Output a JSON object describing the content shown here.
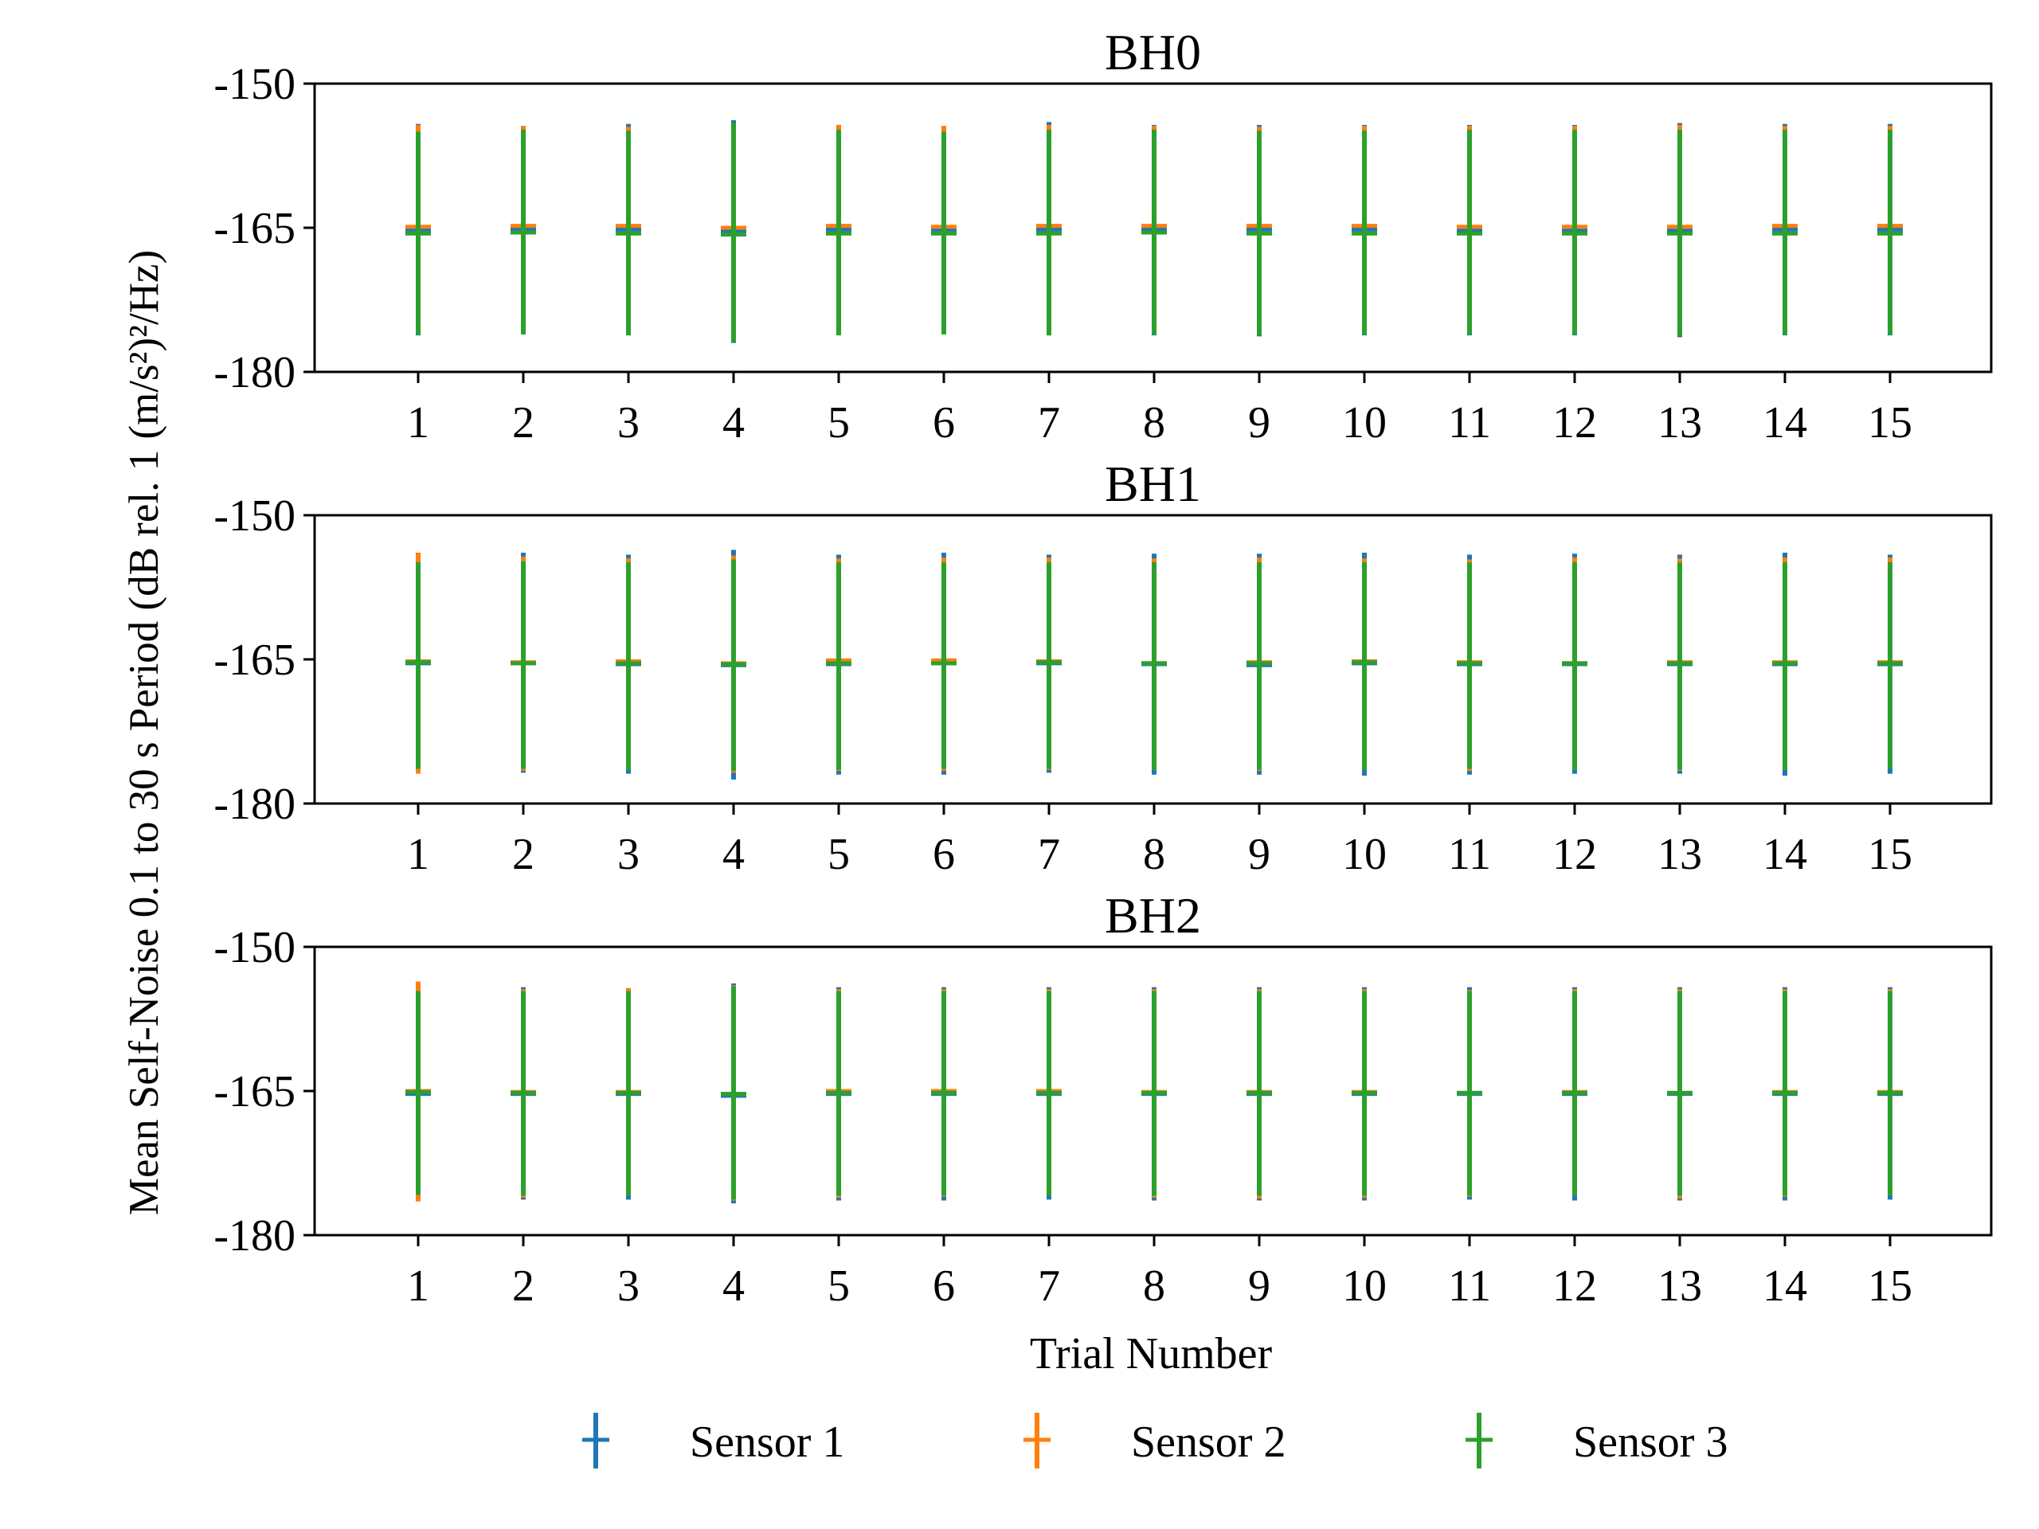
{
  "chart_data": {
    "type": "errorbar",
    "ylabel": "Mean Self-Noise 0.1 to 30 s Period (dB rel. 1 (m/s²)²/Hz)",
    "xlabel": "Trial Number",
    "categories": [
      1,
      2,
      3,
      4,
      5,
      6,
      7,
      8,
      9,
      10,
      11,
      12,
      13,
      14,
      15
    ],
    "x_tick_labels": [
      "1",
      "2",
      "3",
      "4",
      "5",
      "6",
      "7",
      "8",
      "9",
      "10",
      "11",
      "12",
      "13",
      "14",
      "15"
    ],
    "y_ticks": [
      -150,
      -165,
      -180
    ],
    "y_tick_labels": [
      "-150",
      "-165",
      "-180"
    ],
    "ylim": [
      -180,
      -150
    ],
    "legend": {
      "placement": "bottom-center",
      "entries": [
        {
          "name": "Sensor 1",
          "color": "#1f77b4"
        },
        {
          "name": "Sensor 2",
          "color": "#ff7f0e"
        },
        {
          "name": "Sensor 3",
          "color": "#2ca02c"
        }
      ]
    },
    "panels": [
      {
        "title": "BH0",
        "series": [
          {
            "name": "Sensor 1",
            "color": "#1f77b4",
            "mean": [
              -165.2,
              -165.2,
              -165.2,
              -165.4,
              -165.2,
              -165.2,
              -165.2,
              -165.2,
              -165.2,
              -165.2,
              -165.3,
              -165.3,
              -165.3,
              -165.2,
              -165.2
            ],
            "upper": [
              -154.2,
              -154.4,
              -154.2,
              -153.8,
              -154.3,
              -154.4,
              -154.0,
              -154.3,
              -154.3,
              -154.3,
              -154.3,
              -154.3,
              -154.1,
              -154.2,
              -154.2
            ],
            "lower": [
              -176.2,
              -176.1,
              -176.2,
              -177.0,
              -176.1,
              -176.1,
              -176.2,
              -176.2,
              -176.3,
              -176.2,
              -176.2,
              -176.2,
              -176.4,
              -176.2,
              -176.2
            ]
          },
          {
            "name": "Sensor 2",
            "color": "#ff7f0e",
            "mean": [
              -164.9,
              -164.8,
              -164.8,
              -165.0,
              -164.8,
              -164.9,
              -164.8,
              -164.8,
              -164.8,
              -164.8,
              -164.9,
              -164.9,
              -164.9,
              -164.8,
              -164.8
            ],
            "upper": [
              -154.3,
              -154.4,
              -154.5,
              -154.1,
              -154.3,
              -154.4,
              -154.3,
              -154.4,
              -154.5,
              -154.4,
              -154.4,
              -154.4,
              -154.3,
              -154.4,
              -154.4
            ],
            "lower": [
              -175.8,
              -175.6,
              -175.7,
              -176.1,
              -175.7,
              -175.7,
              -175.6,
              -175.7,
              -175.8,
              -175.6,
              -175.7,
              -175.7,
              -175.8,
              -175.6,
              -175.7
            ]
          },
          {
            "name": "Sensor 3",
            "color": "#2ca02c",
            "mean": [
              -165.6,
              -165.5,
              -165.6,
              -165.7,
              -165.6,
              -165.6,
              -165.6,
              -165.5,
              -165.6,
              -165.6,
              -165.6,
              -165.6,
              -165.6,
              -165.6,
              -165.6
            ],
            "upper": [
              -155.0,
              -154.8,
              -154.9,
              -154.1,
              -154.8,
              -155.0,
              -154.8,
              -154.8,
              -154.9,
              -154.9,
              -154.8,
              -154.8,
              -154.8,
              -154.8,
              -154.8
            ],
            "lower": [
              -176.1,
              -176.1,
              -176.2,
              -176.9,
              -176.2,
              -176.1,
              -176.2,
              -176.1,
              -176.2,
              -176.1,
              -176.1,
              -176.1,
              -176.2,
              -176.1,
              -176.1
            ]
          }
        ]
      },
      {
        "title": "BH1",
        "series": [
          {
            "name": "Sensor 1",
            "color": "#1f77b4",
            "mean": [
              -165.4,
              -165.4,
              -165.5,
              -165.6,
              -165.5,
              -165.4,
              -165.4,
              -165.5,
              -165.6,
              -165.4,
              -165.5,
              -165.5,
              -165.5,
              -165.5,
              -165.5
            ],
            "upper": [
              -154.0,
              -153.9,
              -154.1,
              -153.6,
              -154.1,
              -153.9,
              -154.1,
              -154.0,
              -154.0,
              -153.9,
              -154.1,
              -154.0,
              -154.1,
              -153.9,
              -154.1
            ],
            "lower": [
              -176.8,
              -176.8,
              -176.9,
              -177.5,
              -177.0,
              -177.0,
              -176.8,
              -177.0,
              -177.0,
              -177.1,
              -177.0,
              -176.9,
              -176.9,
              -177.1,
              -176.9
            ]
          },
          {
            "name": "Sensor 2",
            "color": "#ff7f0e",
            "mean": [
              -165.2,
              -165.3,
              -165.2,
              -165.4,
              -165.1,
              -165.1,
              -165.2,
              -165.4,
              -165.3,
              -165.2,
              -165.3,
              -165.4,
              -165.3,
              -165.3,
              -165.3
            ],
            "upper": [
              -153.9,
              -154.3,
              -154.5,
              -154.2,
              -154.5,
              -154.4,
              -154.4,
              -154.5,
              -154.4,
              -154.5,
              -154.6,
              -154.4,
              -154.5,
              -154.4,
              -154.4
            ],
            "lower": [
              -176.9,
              -176.6,
              -176.5,
              -176.8,
              -176.6,
              -176.6,
              -176.5,
              -176.5,
              -176.6,
              -176.5,
              -176.6,
              -176.5,
              -176.6,
              -176.5,
              -176.4
            ]
          },
          {
            "name": "Sensor 3",
            "color": "#2ca02c",
            "mean": [
              -165.3,
              -165.4,
              -165.4,
              -165.5,
              -165.4,
              -165.4,
              -165.3,
              -165.4,
              -165.4,
              -165.3,
              -165.4,
              -165.4,
              -165.4,
              -165.4,
              -165.4
            ],
            "upper": [
              -154.9,
              -154.8,
              -154.9,
              -154.6,
              -154.9,
              -154.9,
              -154.9,
              -154.9,
              -154.9,
              -154.9,
              -154.9,
              -154.9,
              -154.9,
              -154.9,
              -154.9
            ],
            "lower": [
              -176.4,
              -176.4,
              -176.5,
              -176.6,
              -176.5,
              -176.4,
              -176.4,
              -176.5,
              -176.5,
              -176.5,
              -176.4,
              -176.5,
              -176.5,
              -176.5,
              -176.4
            ]
          }
        ]
      },
      {
        "title": "BH2",
        "series": [
          {
            "name": "Sensor 1",
            "color": "#1f77b4",
            "mean": [
              -165.3,
              -165.3,
              -165.3,
              -165.5,
              -165.3,
              -165.3,
              -165.3,
              -165.3,
              -165.3,
              -165.3,
              -165.3,
              -165.3,
              -165.3,
              -165.3,
              -165.3
            ],
            "upper": [
              -154.2,
              -154.2,
              -154.3,
              -153.8,
              -154.2,
              -154.2,
              -154.2,
              -154.2,
              -154.2,
              -154.2,
              -154.2,
              -154.2,
              -154.2,
              -154.2,
              -154.2
            ],
            "lower": [
              -176.4,
              -176.3,
              -176.3,
              -176.7,
              -176.4,
              -176.4,
              -176.3,
              -176.4,
              -176.4,
              -176.4,
              -176.3,
              -176.4,
              -176.4,
              -176.4,
              -176.3
            ]
          },
          {
            "name": "Sensor 2",
            "color": "#ff7f0e",
            "mean": [
              -165.0,
              -165.1,
              -165.1,
              -165.3,
              -165.0,
              -165.0,
              -165.0,
              -165.1,
              -165.1,
              -165.1,
              -165.2,
              -165.1,
              -165.2,
              -165.1,
              -165.1
            ],
            "upper": [
              -153.6,
              -154.4,
              -154.3,
              -154.0,
              -154.4,
              -154.4,
              -154.4,
              -154.4,
              -154.4,
              -154.4,
              -154.5,
              -154.4,
              -154.4,
              -154.4,
              -154.4
            ],
            "lower": [
              -176.5,
              -176.1,
              -175.9,
              -176.4,
              -176.1,
              -176.0,
              -175.9,
              -176.1,
              -176.2,
              -176.1,
              -176.0,
              -175.9,
              -176.2,
              -176.0,
              -175.7
            ]
          },
          {
            "name": "Sensor 3",
            "color": "#2ca02c",
            "mean": [
              -165.1,
              -165.2,
              -165.2,
              -165.3,
              -165.2,
              -165.2,
              -165.2,
              -165.2,
              -165.2,
              -165.2,
              -165.2,
              -165.2,
              -165.2,
              -165.2,
              -165.2
            ],
            "upper": [
              -154.6,
              -154.6,
              -154.6,
              -154.1,
              -154.6,
              -154.6,
              -154.6,
              -154.6,
              -154.6,
              -154.6,
              -154.6,
              -154.6,
              -154.6,
              -154.6,
              -154.6
            ],
            "lower": [
              -175.8,
              -175.9,
              -175.9,
              -176.3,
              -175.9,
              -175.9,
              -175.9,
              -175.9,
              -175.9,
              -175.9,
              -175.9,
              -175.9,
              -175.9,
              -175.9,
              -175.9
            ]
          }
        ]
      }
    ]
  }
}
